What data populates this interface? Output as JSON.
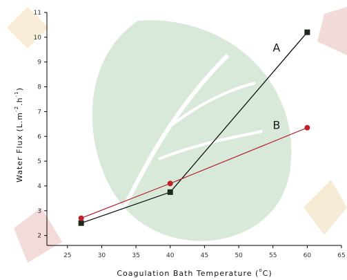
{
  "chart_data": {
    "type": "line",
    "xlabel_main": "Coagulation Bath Temperature (",
    "xlabel_sup": "o",
    "xlabel_end": "C)",
    "ylabel": "Water Flux (L.m",
    "ylabel_sup1": "-2",
    "ylabel_mid": ".h",
    "ylabel_sup2": "-1",
    "ylabel_end": ")",
    "xlim": [
      22,
      65
    ],
    "ylim": [
      1.6,
      11
    ],
    "xticks": [
      25,
      30,
      35,
      40,
      45,
      50,
      55,
      60,
      65
    ],
    "yticks": [
      2,
      3,
      4,
      5,
      6,
      7,
      8,
      9,
      10,
      11
    ],
    "series": [
      {
        "name": "A",
        "x": [
          27,
          40,
          60
        ],
        "y": [
          2.5,
          3.75,
          10.2
        ],
        "color": "#000000",
        "marker": "square",
        "marker_color": "#1b2a1b"
      },
      {
        "name": "B",
        "x": [
          27,
          40,
          60
        ],
        "y": [
          2.7,
          4.1,
          6.35
        ],
        "color": "#b3222a",
        "marker": "circle",
        "marker_color": "#c0202c"
      }
    ]
  }
}
